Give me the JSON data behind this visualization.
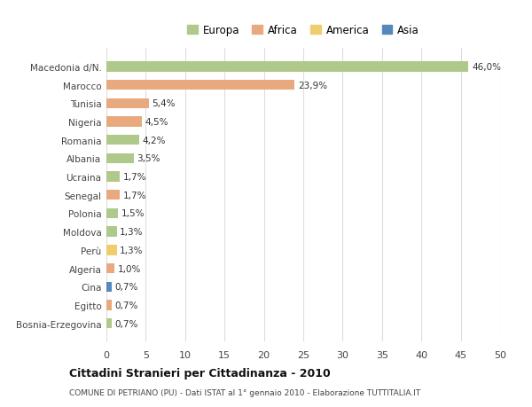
{
  "countries": [
    "Macedonia d/N.",
    "Marocco",
    "Tunisia",
    "Nigeria",
    "Romania",
    "Albania",
    "Ucraina",
    "Senegal",
    "Polonia",
    "Moldova",
    "Perù",
    "Algeria",
    "Cina",
    "Egitto",
    "Bosnia-Erzegovina"
  ],
  "values": [
    46.0,
    23.9,
    5.4,
    4.5,
    4.2,
    3.5,
    1.7,
    1.7,
    1.5,
    1.3,
    1.3,
    1.0,
    0.7,
    0.7,
    0.7
  ],
  "labels": [
    "46,0%",
    "23,9%",
    "5,4%",
    "4,5%",
    "4,2%",
    "3,5%",
    "1,7%",
    "1,7%",
    "1,5%",
    "1,3%",
    "1,3%",
    "1,0%",
    "0,7%",
    "0,7%",
    "0,7%"
  ],
  "colors": [
    "#aec98a",
    "#e8a97e",
    "#e8a97e",
    "#e8a97e",
    "#aec98a",
    "#aec98a",
    "#aec98a",
    "#e8a97e",
    "#aec98a",
    "#aec98a",
    "#f0cc6e",
    "#e8a97e",
    "#5588bb",
    "#e8a97e",
    "#aec98a"
  ],
  "legend_labels": [
    "Europa",
    "Africa",
    "America",
    "Asia"
  ],
  "legend_colors": [
    "#aec98a",
    "#e8a97e",
    "#f0cc6e",
    "#5588bb"
  ],
  "title": "Cittadini Stranieri per Cittadinanza - 2010",
  "subtitle": "COMUNE DI PETRIANO (PU) - Dati ISTAT al 1° gennaio 2010 - Elaborazione TUTTITALIA.IT",
  "xlim": [
    0,
    50
  ],
  "xticks": [
    0,
    5,
    10,
    15,
    20,
    25,
    30,
    35,
    40,
    45,
    50
  ],
  "background_color": "#ffffff",
  "grid_color": "#dddddd"
}
